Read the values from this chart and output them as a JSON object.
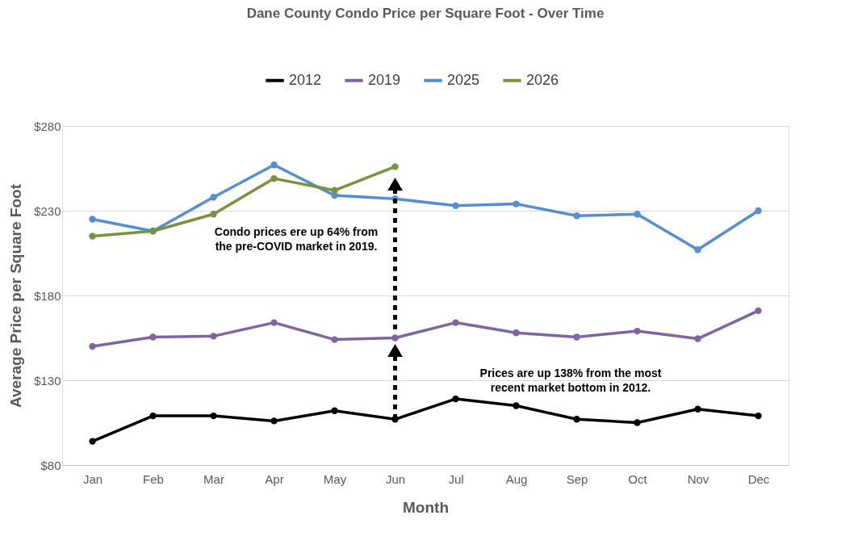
{
  "chart_data": {
    "type": "line",
    "title": "Dane County Condo Price per Square Foot - Over Time",
    "xlabel": "Month",
    "ylabel": "Average Price per Square Foot",
    "categories": [
      "Jan",
      "Feb",
      "Mar",
      "Apr",
      "May",
      "Jun",
      "Jul",
      "Aug",
      "Sep",
      "Oct",
      "Nov",
      "Dec"
    ],
    "series": [
      {
        "name": "2012",
        "color": "#000000",
        "values": [
          94,
          109,
          109,
          106,
          112,
          107,
          119,
          115,
          107,
          105,
          113,
          109
        ]
      },
      {
        "name": "2019",
        "color": "#8064a2",
        "values": [
          150,
          155.5,
          156,
          164,
          154,
          155,
          164,
          158,
          155.5,
          159,
          154.5,
          171
        ]
      },
      {
        "name": "2025",
        "color": "#558ed5",
        "values": [
          225,
          218,
          238,
          257,
          239,
          237,
          233,
          234,
          227,
          228,
          207,
          230
        ]
      },
      {
        "name": "2026",
        "color": "#77933c",
        "values": [
          215,
          218,
          228,
          249,
          242,
          256,
          null,
          null,
          null,
          null,
          null,
          null
        ]
      }
    ],
    "ylim": [
      80,
      280
    ],
    "yticks": [
      {
        "value": 80,
        "label": "$80"
      },
      {
        "value": 130,
        "label": "$130"
      },
      {
        "value": 180,
        "label": "$180"
      },
      {
        "value": 230,
        "label": "$230"
      },
      {
        "value": 280,
        "label": "$280"
      }
    ],
    "grid": "y",
    "legend": "top",
    "marker": "circle",
    "line_style": "solid",
    "annotations": [
      "Condo prices ere up 64% from\nthe pre-COVID market in 2019.",
      "Prices are up 138% from the most\nrecent market bottom in 2012."
    ]
  }
}
